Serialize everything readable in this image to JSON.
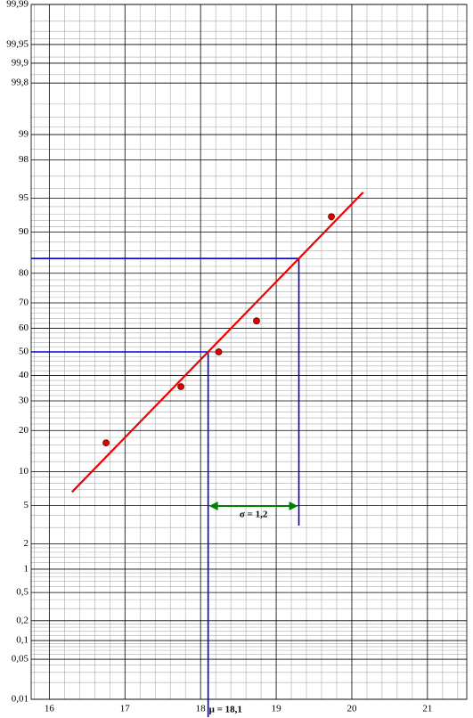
{
  "chart_data": {
    "type": "scatter",
    "yscale": "probability",
    "x": [
      16.75,
      17.74,
      18.24,
      18.74,
      19.73
    ],
    "values": [
      16.5,
      35.5,
      50,
      63,
      92.6
    ],
    "color": "#dd0000",
    "xlim": [
      15.76,
      21.52
    ],
    "ylim": [
      0.01,
      99.99
    ],
    "xticks": [
      16,
      17,
      18,
      19,
      20,
      21
    ],
    "x_minor_ticks": [
      15.8,
      16.2,
      16.4,
      16.6,
      16.8,
      17.2,
      17.4,
      17.6,
      17.8,
      18.2,
      18.4,
      18.6,
      18.8,
      19.2,
      19.4,
      19.6,
      19.8,
      20.2,
      20.4,
      20.6,
      20.8,
      21.2,
      21.4
    ],
    "yticks": [
      {
        "value": 99.99,
        "label": "99,99"
      },
      {
        "value": 99.95,
        "label": "99,95"
      },
      {
        "value": 99.9,
        "label": "99,9"
      },
      {
        "value": 99.8,
        "label": "99,8"
      },
      99,
      98,
      95,
      90,
      80,
      70,
      60,
      50,
      40,
      30,
      20,
      10,
      5,
      2,
      1,
      {
        "value": 0.5,
        "label": "0,5"
      },
      {
        "value": 0.2,
        "label": "0,2"
      },
      {
        "value": 0.1,
        "label": "0,1"
      },
      {
        "value": 0.05,
        "label": "0,05"
      },
      {
        "value": 0.01,
        "label": "0,01"
      }
    ],
    "y_minor_ticks": [
      0.02,
      0.03,
      0.04,
      0.06,
      0.07,
      0.08,
      0.09,
      0.12,
      0.14,
      0.16,
      0.18,
      0.3,
      0.4,
      0.6,
      0.7,
      0.8,
      0.9,
      1.2,
      1.4,
      1.6,
      1.8,
      3,
      4,
      6,
      7,
      8,
      9,
      12,
      14,
      16,
      18,
      22,
      24,
      26,
      28,
      32,
      34,
      36,
      38,
      42,
      44,
      46,
      48,
      52,
      54,
      56,
      58,
      62,
      64,
      66,
      68,
      72,
      74,
      76,
      78,
      82,
      84,
      86,
      88,
      91,
      92,
      93,
      94,
      96,
      97,
      98.5,
      99.2,
      99.4,
      99.6,
      99.85,
      99.92,
      99.96,
      99.97,
      99.98
    ],
    "grid": true,
    "fit": {
      "mu": 18.1,
      "sigma": 1.2,
      "x": [
        16.3,
        20.15
      ],
      "color": "#ee0000"
    },
    "guides": {
      "color": "#0000cc",
      "levels": [
        50,
        84.13
      ]
    },
    "mu_label": "μ = 18,1",
    "sigma_label": "σ = 1,2",
    "sigma_color": "#008000"
  }
}
